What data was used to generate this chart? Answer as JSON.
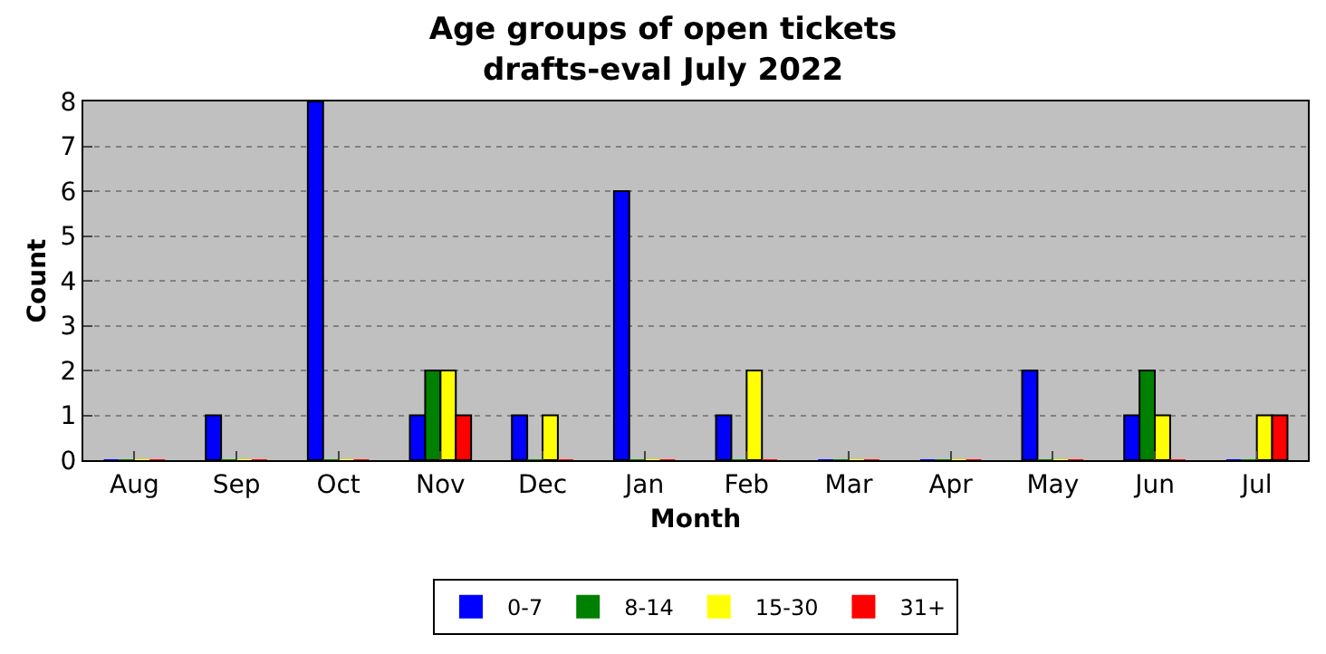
{
  "chart_data": {
    "type": "bar",
    "title": "Age groups of open tickets\ndrafts-eval July 2022",
    "xlabel": "Month",
    "ylabel": "Count",
    "categories": [
      "Aug",
      "Sep",
      "Oct",
      "Nov",
      "Dec",
      "Jan",
      "Feb",
      "Mar",
      "Apr",
      "May",
      "Jun",
      "Jul"
    ],
    "series": [
      {
        "name": "0-7",
        "color": "#0000ff",
        "values": [
          0,
          1,
          8,
          1,
          1,
          6,
          1,
          0,
          0,
          2,
          1,
          0
        ]
      },
      {
        "name": "8-14",
        "color": "#008000",
        "values": [
          0,
          0,
          0,
          2,
          0,
          0,
          0,
          0,
          0,
          0,
          2,
          0
        ]
      },
      {
        "name": "15-30",
        "color": "#ffff00",
        "values": [
          0,
          0,
          0,
          2,
          1,
          0,
          2,
          0,
          0,
          0,
          1,
          1
        ]
      },
      {
        "name": "31+",
        "color": "#ff0000",
        "values": [
          0,
          0,
          0,
          1,
          0,
          0,
          0,
          0,
          0,
          0,
          0,
          1
        ]
      }
    ],
    "ylim": [
      0,
      8
    ],
    "yticks": [
      0,
      1,
      2,
      3,
      4,
      5,
      6,
      7,
      8
    ],
    "grid": "y",
    "legend": "bottom"
  }
}
